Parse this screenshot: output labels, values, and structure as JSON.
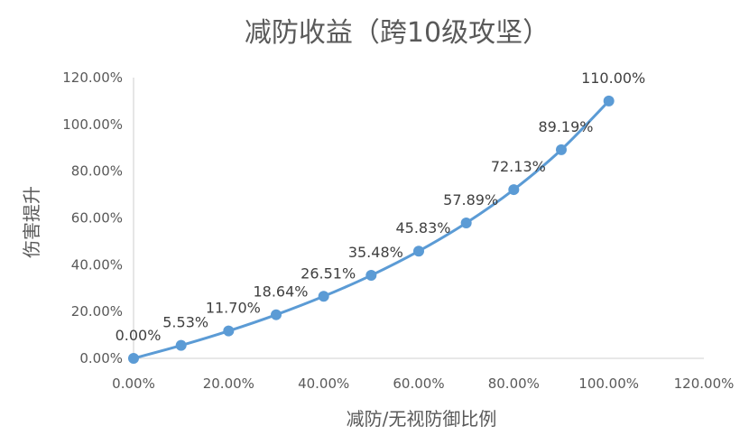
{
  "chart_data": {
    "type": "line",
    "title": "减防收益（跨10级攻坚）",
    "xlabel": "减防/无视防御比例",
    "ylabel": "伤害提升",
    "xlim": [
      0,
      1.2
    ],
    "ylim": [
      0,
      1.2
    ],
    "x_ticks": [
      "0.00%",
      "20.00%",
      "40.00%",
      "60.00%",
      "80.00%",
      "100.00%",
      "120.00%"
    ],
    "y_ticks": [
      "0.00%",
      "20.00%",
      "40.00%",
      "60.00%",
      "80.00%",
      "100.00%",
      "120.00%"
    ],
    "series": [
      {
        "x": [
          0,
          0.1,
          0.2,
          0.3,
          0.4,
          0.5,
          0.6,
          0.7,
          0.8,
          0.9,
          1.0
        ],
        "values": [
          0,
          0.0553,
          0.117,
          0.1864,
          0.2651,
          0.3548,
          0.4583,
          0.5789,
          0.7213,
          0.8919,
          1.1
        ],
        "labels": [
          "0.00%",
          "5.53%",
          "11.70%",
          "18.64%",
          "26.51%",
          "35.48%",
          "45.83%",
          "57.89%",
          "72.13%",
          "89.19%",
          "110.00%"
        ]
      }
    ],
    "line_color": "#5b9bd5",
    "axis_color": "#d9d9d9",
    "grid": false,
    "legend": false
  }
}
